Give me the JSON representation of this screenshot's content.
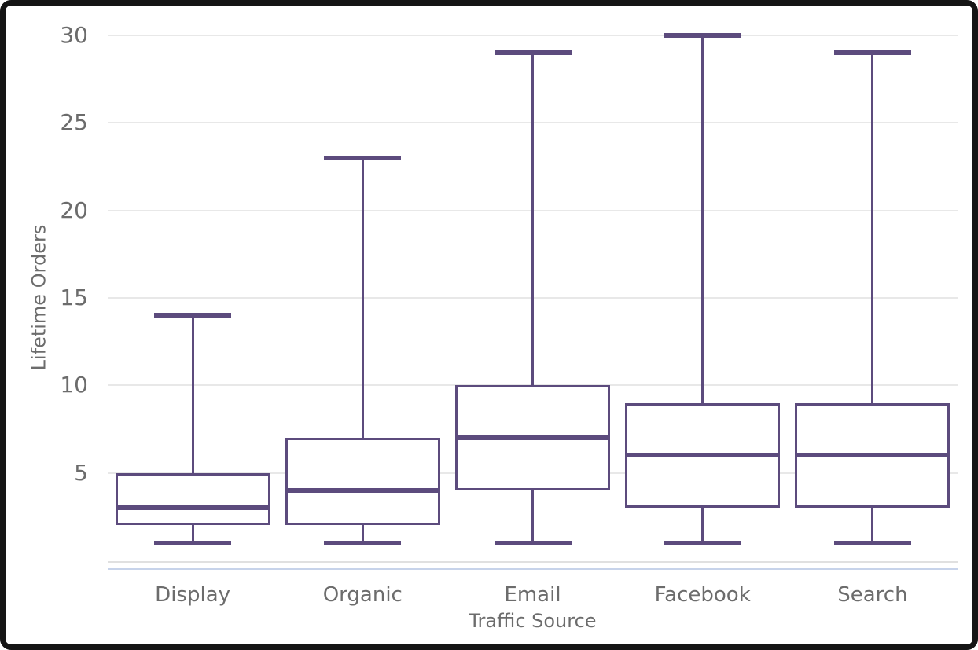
{
  "window": {
    "frame_color": "#151515",
    "background_color": "#ffffff"
  },
  "colors": {
    "box_stroke": "#5c4b7d",
    "median": "#5c4b7d",
    "gridline": "#e8e8e8",
    "baseline": "#e0e0e0",
    "accent_line": "#c7d3ea",
    "label_text": "#6c6c6c"
  },
  "chart_data": {
    "type": "boxplot",
    "title": "",
    "xlabel": "Traffic Source",
    "ylabel": "Lifetime Orders",
    "categories": [
      "Display",
      "Organic",
      "Email",
      "Facebook",
      "Search"
    ],
    "y_ticks": [
      5,
      10,
      15,
      20,
      25,
      30
    ],
    "ylim": [
      0,
      30
    ],
    "grid": "horizontal-only",
    "legend": "none",
    "boxes": [
      {
        "category": "Display",
        "min": 1,
        "q1": 2,
        "median": 3,
        "q3": 5,
        "max": 14
      },
      {
        "category": "Organic",
        "min": 1,
        "q1": 2,
        "median": 4,
        "q3": 7,
        "max": 23
      },
      {
        "category": "Email",
        "min": 1,
        "q1": 4,
        "median": 7,
        "q3": 10,
        "max": 29
      },
      {
        "category": "Facebook",
        "min": 1,
        "q1": 3,
        "median": 6,
        "q3": 9,
        "max": 30
      },
      {
        "category": "Search",
        "min": 1,
        "q1": 3,
        "median": 6,
        "q3": 9,
        "max": 29
      }
    ]
  }
}
